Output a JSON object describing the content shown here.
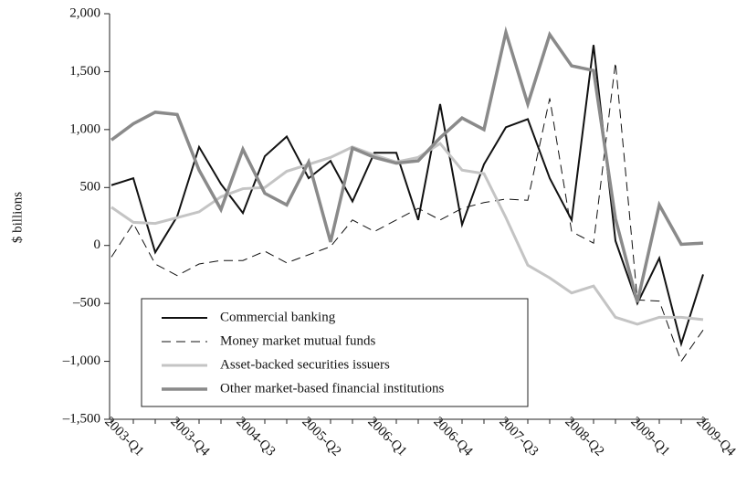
{
  "chart_data": {
    "type": "line",
    "y_label": "$ billions",
    "categories": [
      "2003-Q1",
      null,
      null,
      "2003-Q4",
      null,
      null,
      "2004-Q3",
      null,
      null,
      "2005-Q2",
      null,
      null,
      "2006-Q1",
      null,
      null,
      "2006-Q4",
      null,
      null,
      "2007-Q3",
      null,
      null,
      "2008-Q2",
      null,
      null,
      "2009-Q1",
      null,
      null,
      "2009-Q4"
    ],
    "series": [
      {
        "name": "Commercial banking",
        "color": "#111111",
        "dash": "none",
        "width": 2,
        "values": [
          520,
          580,
          -60,
          250,
          850,
          530,
          280,
          770,
          940,
          580,
          730,
          380,
          800,
          800,
          220,
          1220,
          180,
          700,
          1020,
          1090,
          580,
          220,
          1730,
          40,
          -500,
          -110,
          -850,
          -250
        ]
      },
      {
        "name": "Money market mutual funds",
        "color": "#111111",
        "dash": "10 6",
        "width": 1,
        "values": [
          -100,
          190,
          -160,
          -260,
          -160,
          -130,
          -130,
          -50,
          -150,
          -80,
          -10,
          220,
          120,
          220,
          320,
          220,
          320,
          370,
          400,
          390,
          1270,
          120,
          20,
          1580,
          -470,
          -480,
          -1000,
          -730
        ]
      },
      {
        "name": "Asset-backed securities issuers",
        "color": "#c4c4c4",
        "dash": "none",
        "width": 3,
        "values": [
          330,
          200,
          190,
          240,
          290,
          420,
          490,
          500,
          640,
          700,
          760,
          850,
          780,
          720,
          760,
          880,
          650,
          620,
          240,
          -170,
          -280,
          -410,
          -350,
          -620,
          -680,
          -620,
          -620,
          -640
        ]
      },
      {
        "name": "Other market-based financial institutions",
        "color": "#8a8a8a",
        "dash": "none",
        "width": 3.5,
        "values": [
          910,
          1050,
          1150,
          1130,
          650,
          310,
          830,
          450,
          350,
          720,
          30,
          840,
          760,
          710,
          730,
          930,
          1100,
          1000,
          1840,
          1220,
          1820,
          1550,
          1510,
          230,
          -490,
          350,
          10,
          20
        ]
      }
    ],
    "ylim": [
      -1500,
      2000
    ],
    "yticks": [
      {
        "value": -1500,
        "label": "–1,500"
      },
      {
        "value": -1000,
        "label": "–1,000"
      },
      {
        "value": -500,
        "label": "–500"
      },
      0,
      500,
      {
        "value": 1000,
        "label": "1,000"
      },
      {
        "value": 1500,
        "label": "1,500"
      },
      {
        "value": 2000,
        "label": "2,000"
      }
    ],
    "legend": "lower-left"
  }
}
